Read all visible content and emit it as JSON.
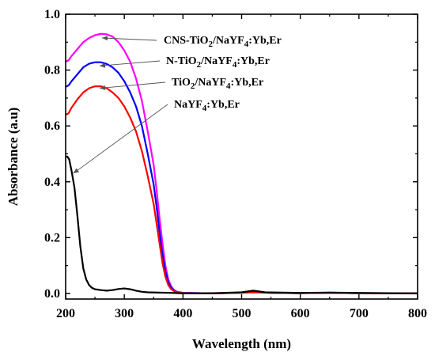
{
  "chart_data": {
    "type": "line",
    "title": "",
    "xlabel": "Wavelength (nm)",
    "ylabel": "Absorbance (a.u)",
    "xlim": [
      200,
      800
    ],
    "ylim": [
      -0.02,
      1.0
    ],
    "xticks": [
      200,
      300,
      400,
      500,
      600,
      700,
      800
    ],
    "xtick_labels": [
      "200",
      "300",
      "400",
      "500",
      "600",
      "700",
      "800"
    ],
    "yticks": [
      0.0,
      0.2,
      0.4,
      0.6,
      0.8,
      1.0
    ],
    "ytick_labels": [
      "0.0",
      "0.2",
      "0.4",
      "0.6",
      "0.8",
      "1.0"
    ],
    "grid": false,
    "legend_placement": "inline annotations with arrows, top-center",
    "series": [
      {
        "label_parts": [
          {
            "t": "CNS-TiO",
            "sub": false
          },
          {
            "t": "2",
            "sub": true
          },
          {
            "t": "/NaYF",
            "sub": false
          },
          {
            "t": "4",
            "sub": true
          },
          {
            "t": ":Yb,Er",
            "sub": false
          }
        ],
        "color": "#ff00ff",
        "arrow_to": [
          262,
          0.915
        ],
        "x": [
          200,
          205,
          210,
          220,
          230,
          240,
          250,
          260,
          270,
          280,
          290,
          300,
          310,
          320,
          330,
          340,
          350,
          355,
          360,
          365,
          370,
          375,
          380,
          385,
          390,
          400,
          450,
          500,
          520,
          550,
          600,
          650,
          700,
          750,
          800
        ],
        "y": [
          0.83,
          0.835,
          0.85,
          0.875,
          0.9,
          0.915,
          0.925,
          0.93,
          0.928,
          0.92,
          0.9,
          0.87,
          0.83,
          0.77,
          0.69,
          0.58,
          0.46,
          0.37,
          0.27,
          0.18,
          0.1,
          0.05,
          0.025,
          0.012,
          0.006,
          0.002,
          0.0,
          0.003,
          0.006,
          0.002,
          0.001,
          0.003,
          0.001,
          0.0,
          0.0
        ]
      },
      {
        "label_parts": [
          {
            "t": "N-TiO",
            "sub": false
          },
          {
            "t": "2",
            "sub": true
          },
          {
            "t": "/NaYF",
            "sub": false
          },
          {
            "t": "4",
            "sub": true
          },
          {
            "t": ":Yb,Er",
            "sub": false
          }
        ],
        "color": "#0000ff",
        "arrow_to": [
          258,
          0.815
        ],
        "x": [
          200,
          205,
          210,
          220,
          230,
          240,
          250,
          260,
          270,
          280,
          290,
          300,
          310,
          320,
          330,
          340,
          350,
          355,
          360,
          365,
          370,
          375,
          380,
          385,
          390,
          400,
          450,
          500,
          520,
          550,
          600,
          650,
          700,
          750,
          800
        ],
        "y": [
          0.74,
          0.745,
          0.76,
          0.785,
          0.81,
          0.823,
          0.828,
          0.828,
          0.822,
          0.81,
          0.79,
          0.76,
          0.72,
          0.67,
          0.6,
          0.5,
          0.39,
          0.31,
          0.22,
          0.14,
          0.08,
          0.04,
          0.02,
          0.01,
          0.005,
          0.002,
          0.0,
          0.003,
          0.005,
          0.002,
          0.001,
          0.002,
          0.001,
          0.0,
          0.0
        ]
      },
      {
        "label_parts": [
          {
            "t": "TiO",
            "sub": false
          },
          {
            "t": "2",
            "sub": true
          },
          {
            "t": "/NaYF",
            "sub": false
          },
          {
            "t": "4",
            "sub": true
          },
          {
            "t": ":Yb,Er",
            "sub": false
          }
        ],
        "color": "#ff0000",
        "arrow_to": [
          258,
          0.735
        ],
        "x": [
          200,
          205,
          210,
          220,
          230,
          240,
          250,
          260,
          270,
          280,
          290,
          300,
          310,
          320,
          330,
          340,
          350,
          355,
          360,
          365,
          370,
          375,
          380,
          385,
          390,
          400,
          450,
          500,
          520,
          550,
          600,
          650,
          700,
          750,
          800
        ],
        "y": [
          0.64,
          0.645,
          0.665,
          0.695,
          0.72,
          0.735,
          0.742,
          0.742,
          0.735,
          0.72,
          0.7,
          0.67,
          0.63,
          0.58,
          0.51,
          0.42,
          0.32,
          0.25,
          0.18,
          0.11,
          0.06,
          0.03,
          0.015,
          0.008,
          0.004,
          0.001,
          0.0,
          0.002,
          0.004,
          0.002,
          0.001,
          0.002,
          0.001,
          0.0,
          0.0
        ]
      },
      {
        "label_parts": [
          {
            "t": "NaYF",
            "sub": false
          },
          {
            "t": "4",
            "sub": true
          },
          {
            "t": ":Yb,Er",
            "sub": false
          }
        ],
        "color": "#000000",
        "arrow_to": [
          213,
          0.43
        ],
        "x": [
          200,
          203,
          206,
          210,
          215,
          220,
          225,
          230,
          235,
          240,
          245,
          250,
          260,
          270,
          280,
          290,
          300,
          310,
          320,
          330,
          340,
          360,
          380,
          400,
          450,
          500,
          520,
          540,
          600,
          650,
          700,
          750,
          800
        ],
        "y": [
          0.49,
          0.49,
          0.48,
          0.44,
          0.38,
          0.28,
          0.17,
          0.09,
          0.05,
          0.03,
          0.02,
          0.015,
          0.012,
          0.01,
          0.012,
          0.016,
          0.018,
          0.015,
          0.01,
          0.006,
          0.004,
          0.003,
          0.002,
          0.0,
          0.001,
          0.004,
          0.01,
          0.004,
          0.002,
          0.003,
          0.002,
          0.001,
          0.0
        ]
      }
    ]
  }
}
